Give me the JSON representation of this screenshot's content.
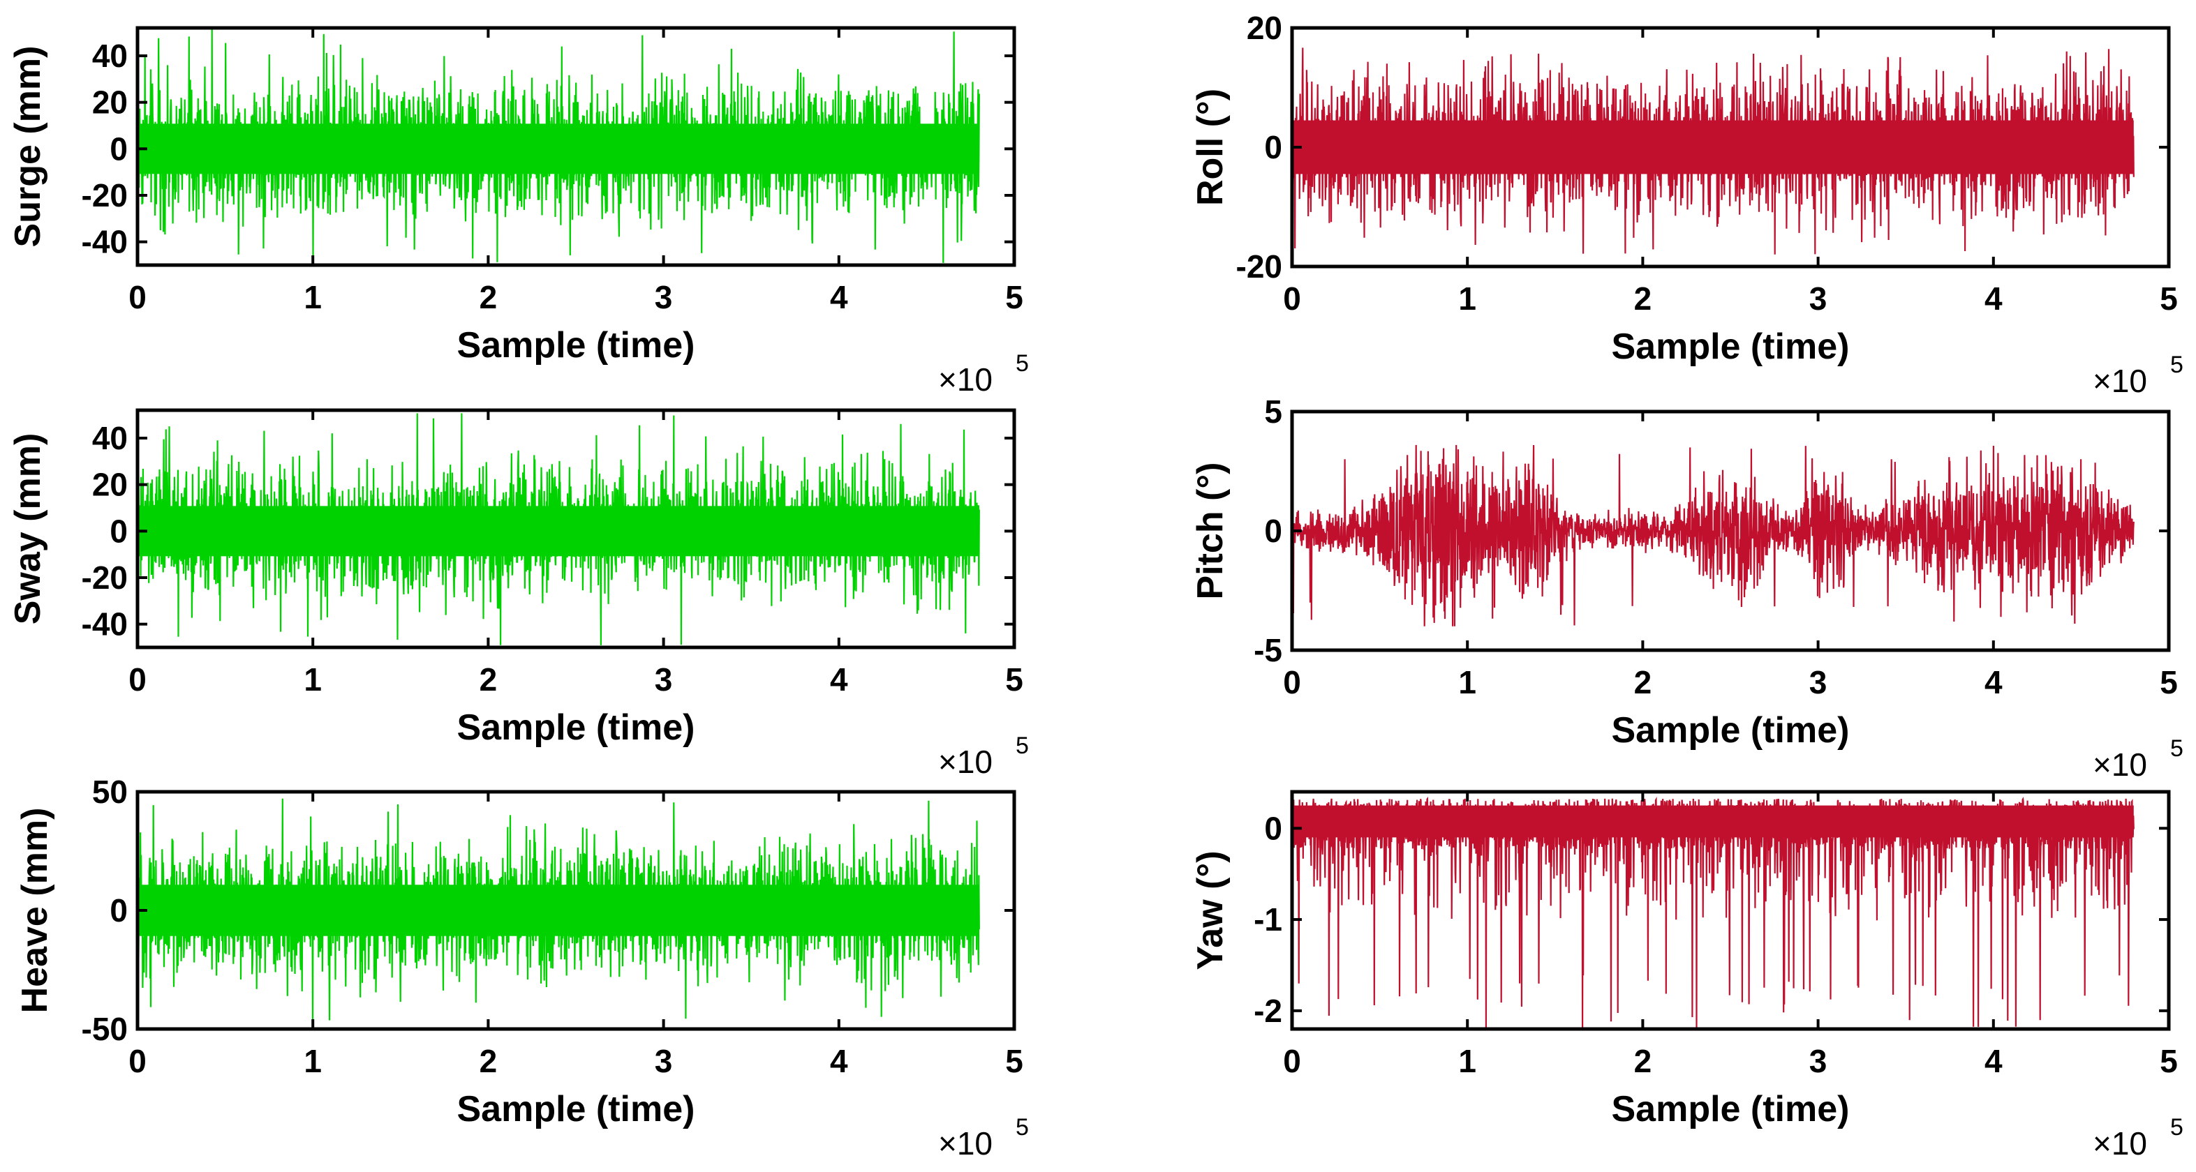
{
  "figure": {
    "colors": {
      "translation": "#00d200",
      "rotation": "#c0102e",
      "axis": "#000000",
      "background": "#ffffff"
    }
  },
  "chart_data": [
    {
      "id": "surge",
      "type": "line",
      "title": "",
      "xlabel": "Sample (time)",
      "ylabel": "Surge (mm)",
      "xlim": [
        0,
        5
      ],
      "x_scale_label": "×10",
      "x_scale_exp": "5",
      "xticks": [
        0,
        1,
        2,
        3,
        4,
        5
      ],
      "xtick_labels": [
        "0",
        "1",
        "2",
        "3",
        "4",
        "5"
      ],
      "ylim": [
        -50,
        52
      ],
      "yticks": [
        40,
        20,
        0,
        -20,
        -40
      ],
      "ytick_labels": [
        "40",
        "20",
        "0",
        "-20",
        "-40"
      ],
      "series": [
        {
          "name": "Surge",
          "color": "#00d200",
          "x_range": [
            0,
            4.8
          ],
          "amplitude": 24,
          "extreme_min": -50,
          "extreme_max": 52
        }
      ]
    },
    {
      "id": "sway",
      "type": "line",
      "title": "",
      "xlabel": "Sample (time)",
      "ylabel": "Sway (mm)",
      "xlim": [
        0,
        5
      ],
      "x_scale_label": "×10",
      "x_scale_exp": "5",
      "xticks": [
        0,
        1,
        2,
        3,
        4,
        5
      ],
      "xtick_labels": [
        "0",
        "1",
        "2",
        "3",
        "4",
        "5"
      ],
      "ylim": [
        -50,
        52
      ],
      "yticks": [
        40,
        20,
        0,
        -20,
        -40
      ],
      "ytick_labels": [
        "40",
        "20",
        "0",
        "-20",
        "-40"
      ],
      "series": [
        {
          "name": "Sway",
          "color": "#00d200",
          "x_range": [
            0,
            4.8
          ],
          "amplitude": 24,
          "extreme_min": -50,
          "extreme_max": 52
        }
      ]
    },
    {
      "id": "heave",
      "type": "line",
      "title": "",
      "xlabel": "Sample (time)",
      "ylabel": "Heave (mm)",
      "xlim": [
        0,
        5
      ],
      "x_scale_label": "×10",
      "x_scale_exp": "5",
      "xticks": [
        0,
        1,
        2,
        3,
        4,
        5
      ],
      "xtick_labels": [
        "0",
        "1",
        "2",
        "3",
        "4",
        "5"
      ],
      "ylim": [
        -50,
        50
      ],
      "yticks": [
        50,
        0,
        -50
      ],
      "ytick_labels": [
        "50",
        "0",
        "-50"
      ],
      "series": [
        {
          "name": "Heave",
          "color": "#00d200",
          "x_range": [
            0,
            4.8
          ],
          "amplitude": 24,
          "extreme_min": -48,
          "extreme_max": 48
        }
      ]
    },
    {
      "id": "roll",
      "type": "line",
      "title": "",
      "xlabel": "Sample (time)",
      "ylabel": "Roll (°)",
      "xlim": [
        0,
        5
      ],
      "x_scale_label": "×10",
      "x_scale_exp": "5",
      "xticks": [
        0,
        1,
        2,
        3,
        4,
        5
      ],
      "xtick_labels": [
        "0",
        "1",
        "2",
        "3",
        "4",
        "5"
      ],
      "ylim": [
        -20,
        20
      ],
      "yticks": [
        20,
        0,
        -20
      ],
      "ytick_labels": [
        "20",
        "0",
        "-20"
      ],
      "series": [
        {
          "name": "Roll",
          "color": "#c0102e",
          "x_range": [
            0,
            4.8
          ],
          "amplitude": 10,
          "extreme_min": -18,
          "extreme_max": 17
        }
      ]
    },
    {
      "id": "pitch",
      "type": "line",
      "title": "",
      "xlabel": "Sample (time)",
      "ylabel": "Pitch (°)",
      "xlim": [
        0,
        5
      ],
      "x_scale_label": "×10",
      "x_scale_exp": "5",
      "xticks": [
        0,
        1,
        2,
        3,
        4,
        5
      ],
      "xtick_labels": [
        "0",
        "1",
        "2",
        "3",
        "4",
        "5"
      ],
      "ylim": [
        -5,
        5
      ],
      "yticks": [
        5,
        0,
        -5
      ],
      "ytick_labels": [
        "5",
        "0",
        "-5"
      ],
      "series": [
        {
          "name": "Pitch",
          "color": "#c0102e",
          "x_range": [
            0,
            4.8
          ],
          "amplitude": 1.5,
          "extreme_min": -4,
          "extreme_max": 3.6
        }
      ]
    },
    {
      "id": "yaw",
      "type": "line",
      "title": "",
      "xlabel": "Sample (time)",
      "ylabel": "Yaw (°)",
      "xlim": [
        0,
        5
      ],
      "x_scale_label": "×10",
      "x_scale_exp": "5",
      "xticks": [
        0,
        1,
        2,
        3,
        4,
        5
      ],
      "xtick_labels": [
        "0",
        "1",
        "2",
        "3",
        "4",
        "5"
      ],
      "ylim": [
        -2.2,
        0.4
      ],
      "yticks": [
        0,
        -1,
        -2
      ],
      "ytick_labels": [
        "0",
        "-1",
        "-2"
      ],
      "series": [
        {
          "name": "Yaw",
          "color": "#c0102e",
          "x_range": [
            0,
            4.8
          ],
          "amplitude": 0.35,
          "extreme_min": -2.2,
          "extreme_max": 0.38
        }
      ]
    }
  ]
}
